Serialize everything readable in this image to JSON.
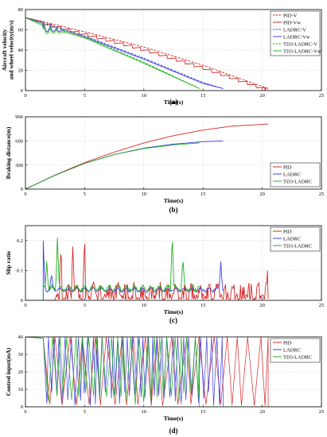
{
  "chart_data": [
    {
      "type": "line",
      "caption": "(a)",
      "xlabel": "Time(s)",
      "ylabel": "Aircraft velocity and wheel velocity(m/s)",
      "xlim": [
        0,
        25
      ],
      "ylim": [
        0,
        80
      ],
      "xticks": [
        0,
        5,
        10,
        15,
        20,
        25
      ],
      "yticks": [
        0,
        20,
        40,
        60,
        80
      ],
      "legend_position": "top-right",
      "series": [
        {
          "name": "PID-V",
          "color": "#d62728",
          "dash": "dashed",
          "x": [
            0,
            1.5,
            5,
            10,
            15,
            20.5
          ],
          "y": [
            72,
            68,
            58,
            43,
            25,
            2
          ]
        },
        {
          "name": "PID-Vw",
          "color": "#d62728",
          "dash": "solid",
          "oscillation": 4,
          "x": [
            0,
            1.5,
            5,
            10,
            15,
            20.5
          ],
          "y": [
            72,
            68,
            57,
            42,
            24,
            2
          ]
        },
        {
          "name": "LADRC-V",
          "color": "#4040e0",
          "dash": "dashed",
          "x": [
            0,
            1.5,
            5,
            10,
            15,
            16.7
          ],
          "y": [
            72,
            67,
            54,
            32,
            8,
            2
          ]
        },
        {
          "name": "LADRC-Vw",
          "color": "#4040e0",
          "dash": "solid",
          "x": [
            0,
            1.5,
            5,
            10,
            15,
            16.7
          ],
          "y": [
            72,
            66,
            53,
            31,
            7,
            2
          ]
        },
        {
          "name": "TD3-LADRC-V",
          "color": "#20b020",
          "dash": "dashed",
          "x": [
            0,
            1.5,
            5,
            10,
            14.7
          ],
          "y": [
            72,
            66,
            53,
            28,
            2
          ]
        },
        {
          "name": "TD3-LADRC-Vw",
          "color": "#20b020",
          "dash": "solid",
          "x": [
            0,
            1.5,
            5,
            10,
            14.7
          ],
          "y": [
            72,
            64,
            52,
            27,
            2
          ]
        }
      ]
    },
    {
      "type": "line",
      "caption": "(b)",
      "xlabel": "Time(s)",
      "ylabel": "Braking distance(m)",
      "xlim": [
        0,
        25
      ],
      "ylim": [
        0,
        900
      ],
      "xticks": [
        0,
        5,
        10,
        15,
        20,
        25
      ],
      "yticks": [
        0,
        300,
        600,
        900
      ],
      "legend_position": "bottom-right",
      "series": [
        {
          "name": "PID",
          "color": "#d62728",
          "x": [
            0,
            2.5,
            5,
            7.5,
            10,
            12.5,
            15,
            17.5,
            20.5
          ],
          "y": [
            0,
            175,
            330,
            460,
            575,
            665,
            735,
            785,
            810
          ]
        },
        {
          "name": "LADRC",
          "color": "#4040e0",
          "x": [
            0,
            2.5,
            5,
            7.5,
            10,
            12.5,
            15,
            16.7
          ],
          "y": [
            0,
            172,
            320,
            430,
            510,
            560,
            590,
            600
          ]
        },
        {
          "name": "TD3-LADRC",
          "color": "#20b020",
          "x": [
            0,
            2.5,
            5,
            7.5,
            10,
            12.5,
            14.7
          ],
          "y": [
            0,
            172,
            320,
            430,
            505,
            550,
            575
          ]
        }
      ]
    },
    {
      "type": "line",
      "caption": "(c)",
      "xlabel": "Time(s)",
      "ylabel": "Slip ratio",
      "xlim": [
        0,
        25
      ],
      "ylim": [
        0,
        0.25
      ],
      "xticks": [
        0,
        5,
        10,
        15,
        20,
        25
      ],
      "yticks": [
        0,
        0.1,
        0.2
      ],
      "legend_position": "top-right",
      "series": [
        {
          "name": "PID",
          "color": "#d62728",
          "start": 2.5,
          "end": 20.5,
          "base": 0.03,
          "amp": 0.03,
          "spikes": [
            [
              3.0,
              0.17
            ],
            [
              4.0,
              0.18
            ],
            [
              5.0,
              0.21
            ],
            [
              20.5,
              0.13
            ]
          ]
        },
        {
          "name": "LADRC",
          "color": "#4040e0",
          "start": 1.5,
          "end": 16.7,
          "base": 0.035,
          "amp": 0.008,
          "spikes": [
            [
              1.5,
              0.2
            ],
            [
              2.2,
              0.09
            ],
            [
              16.5,
              0.13
            ]
          ]
        },
        {
          "name": "TD3-LADRC",
          "color": "#20b020",
          "start": 1.5,
          "end": 14.7,
          "base": 0.04,
          "amp": 0.012,
          "spikes": [
            [
              1.8,
              0.13
            ],
            [
              2.7,
              0.21
            ],
            [
              12.4,
              0.22
            ],
            [
              13.3,
              0.14
            ]
          ]
        }
      ]
    },
    {
      "type": "line",
      "caption": "(d)",
      "xlabel": "Time(s)",
      "ylabel": "Control input(mA)",
      "xlim": [
        0,
        25
      ],
      "ylim": [
        0,
        40
      ],
      "xticks": [
        0,
        5,
        10,
        15,
        20,
        25
      ],
      "yticks": [
        0,
        10,
        20,
        30,
        40
      ],
      "legend_position": "top-right",
      "series": [
        {
          "name": "PID",
          "color": "#d62728",
          "start": 1.5,
          "end": 20.5,
          "period": 0.55
        },
        {
          "name": "LADRC",
          "color": "#4040e0",
          "start": 1.5,
          "end": 16.7,
          "period": 0.22
        },
        {
          "name": "TD3-LADRC",
          "color": "#20b020",
          "start": 1.5,
          "end": 14.7,
          "period": 0.3
        }
      ]
    }
  ]
}
